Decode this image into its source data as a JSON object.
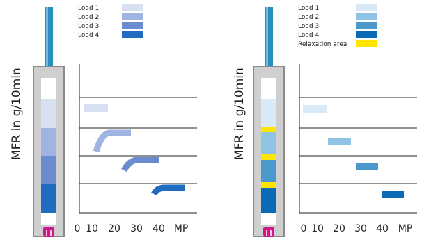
{
  "left_panel": {
    "legend": [
      {
        "label": "Load 1",
        "color": "#d6e0f0"
      },
      {
        "label": "Load 2",
        "color": "#9fb4e0"
      },
      {
        "label": "Load 3",
        "color": "#6b8ccf"
      },
      {
        "label": "Load 4",
        "color": "#1f6cc0"
      }
    ],
    "ylabel": "MFR in g/10min",
    "x_ticks": [
      "0",
      "10",
      "20",
      "30",
      "40",
      "MP"
    ]
  },
  "right_panel": {
    "legend": [
      {
        "label": "Load 1",
        "color": "#d9eaf6"
      },
      {
        "label": "Load 2",
        "color": "#8fc3e4"
      },
      {
        "label": "Load 3",
        "color": "#4a98cc"
      },
      {
        "label": "Load 4",
        "color": "#0c69b4"
      },
      {
        "label": "Relaxation area",
        "color": "#ffe400"
      }
    ],
    "ylabel": "MFR in g/10min",
    "x_ticks": [
      "0",
      "10",
      "20",
      "30",
      "40",
      "MP"
    ]
  },
  "colors": {
    "piston": "#2a8fbf",
    "piston_dark": "#1a6e96",
    "barrel": "#cfcfcf",
    "barrel_dark": "#8a8a8a",
    "die": "#d1188a",
    "gridline": "#222222"
  }
}
